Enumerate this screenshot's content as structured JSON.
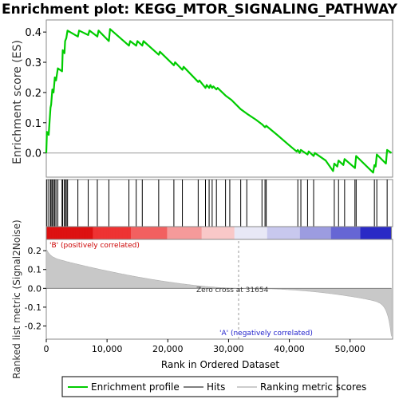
{
  "chart_data": {
    "type": "line",
    "title": "Enrichment plot: KEGG_MTOR_SIGNALING_PATHWAY",
    "xlabel": "Rank in Ordered Dataset",
    "es_ylabel": "Enrichment score (ES)",
    "metric_ylabel": "Ranked list metric (Signal2Noise)",
    "xlim": [
      0,
      57000
    ],
    "es_ylim": [
      -0.08,
      0.44
    ],
    "metric_ylim": [
      -0.27,
      0.26
    ],
    "x_ticks": [
      "0",
      "10,000",
      "20,000",
      "30,000",
      "40,000",
      "50,000"
    ],
    "x_tick_values": [
      0,
      10000,
      20000,
      30000,
      40000,
      50000
    ],
    "es_ticks": [
      "0.0",
      "0.1",
      "0.2",
      "0.3",
      "0.4"
    ],
    "es_tick_values": [
      0.0,
      0.1,
      0.2,
      0.3,
      0.4
    ],
    "metric_ticks": [
      "0.2",
      "0.1",
      "0.0",
      "-0.1",
      "-0.2"
    ],
    "metric_tick_values": [
      0.2,
      0.1,
      0.0,
      -0.1,
      -0.2
    ],
    "pos_label": "'B' (positively correlated)",
    "neg_label": "'A' (negatively correlated)",
    "zero_cross_label": "Zero cross at 31654",
    "zero_cross": 31654,
    "n_genes": 56800,
    "series": [
      {
        "name": "Enrichment profile",
        "color": "#00cc00",
        "x": [
          0,
          100,
          400,
          700,
          800,
          1000,
          1200,
          1400,
          1600,
          1900,
          2600,
          2700,
          3000,
          3100,
          3300,
          3500,
          5200,
          5400,
          6900,
          7100,
          8400,
          8600,
          10300,
          10500,
          13600,
          13800,
          14800,
          15000,
          15800,
          16000,
          18500,
          18700,
          21000,
          21200,
          22400,
          22600,
          25000,
          25200,
          26200,
          26400,
          26800,
          27000,
          27300,
          27500,
          28000,
          28200,
          29500,
          30500,
          32000,
          33000,
          34500,
          35500,
          36000,
          36200,
          38000,
          40000,
          41200,
          41400,
          41700,
          41900,
          43000,
          43200,
          44000,
          44200,
          46000,
          47200,
          47400,
          47900,
          48100,
          48900,
          49100,
          50800,
          51000,
          53800,
          54000,
          54200,
          54400,
          55900,
          56100,
          56800
        ],
        "es": [
          0.0,
          0.07,
          0.06,
          0.15,
          0.16,
          0.21,
          0.2,
          0.25,
          0.24,
          0.28,
          0.27,
          0.34,
          0.33,
          0.37,
          0.38,
          0.405,
          0.385,
          0.405,
          0.39,
          0.405,
          0.385,
          0.405,
          0.37,
          0.41,
          0.355,
          0.37,
          0.355,
          0.37,
          0.355,
          0.37,
          0.325,
          0.335,
          0.29,
          0.3,
          0.275,
          0.285,
          0.235,
          0.24,
          0.215,
          0.225,
          0.215,
          0.225,
          0.215,
          0.22,
          0.21,
          0.215,
          0.19,
          0.175,
          0.145,
          0.13,
          0.11,
          0.095,
          0.085,
          0.09,
          0.06,
          0.025,
          0.005,
          0.01,
          0.0,
          0.01,
          -0.005,
          0.005,
          -0.01,
          0.0,
          -0.025,
          -0.06,
          -0.035,
          -0.045,
          -0.025,
          -0.04,
          -0.02,
          -0.05,
          -0.01,
          -0.065,
          -0.04,
          -0.045,
          -0.005,
          -0.035,
          0.01,
          0.0
        ]
      }
    ],
    "hits": [
      100,
      400,
      700,
      800,
      1000,
      1200,
      1400,
      1600,
      1900,
      2600,
      2700,
      3000,
      3100,
      3300,
      3500,
      5200,
      6900,
      8400,
      10300,
      13600,
      14800,
      15800,
      18500,
      21000,
      22400,
      25000,
      26200,
      26800,
      27300,
      28000,
      29500,
      30200,
      32000,
      33000,
      35500,
      36000,
      36200,
      41400,
      41900,
      43000,
      44000,
      47400,
      48100,
      49100,
      50800,
      51000,
      54000,
      54400,
      56100
    ],
    "heat_colors": [
      "#dd1111",
      "#ee3333",
      "#f26060",
      "#f59a9a",
      "#f9c8c8",
      "#e8e8f6",
      "#c8c8ee",
      "#9c9ce0",
      "#6666d4",
      "#2a2ac6"
    ],
    "legend": [
      "Enrichment profile",
      "Hits",
      "Ranking metric scores"
    ]
  }
}
